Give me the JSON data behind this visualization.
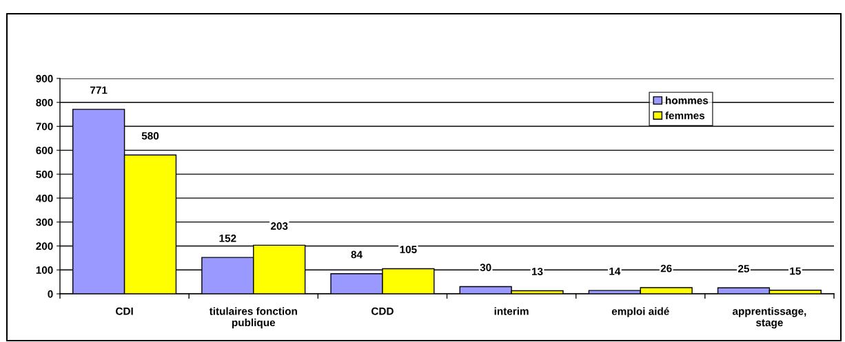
{
  "chart_data": {
    "type": "bar",
    "categories": [
      "CDI",
      "titulaires fonction\npublique",
      "CDD",
      "interim",
      "emploi aidé",
      "apprentissage,\nstage"
    ],
    "series": [
      {
        "name": "hommes",
        "color": "#9999ff",
        "values": [
          771,
          152,
          84,
          30,
          14,
          25
        ]
      },
      {
        "name": "femmes",
        "color": "#ffff00",
        "values": [
          580,
          203,
          105,
          13,
          26,
          15
        ]
      }
    ],
    "ylim": [
      0,
      900
    ],
    "yticks": [
      0,
      100,
      200,
      300,
      400,
      500,
      600,
      700,
      800,
      900
    ],
    "grid": "y",
    "legend": "top right",
    "data_labels": true
  }
}
